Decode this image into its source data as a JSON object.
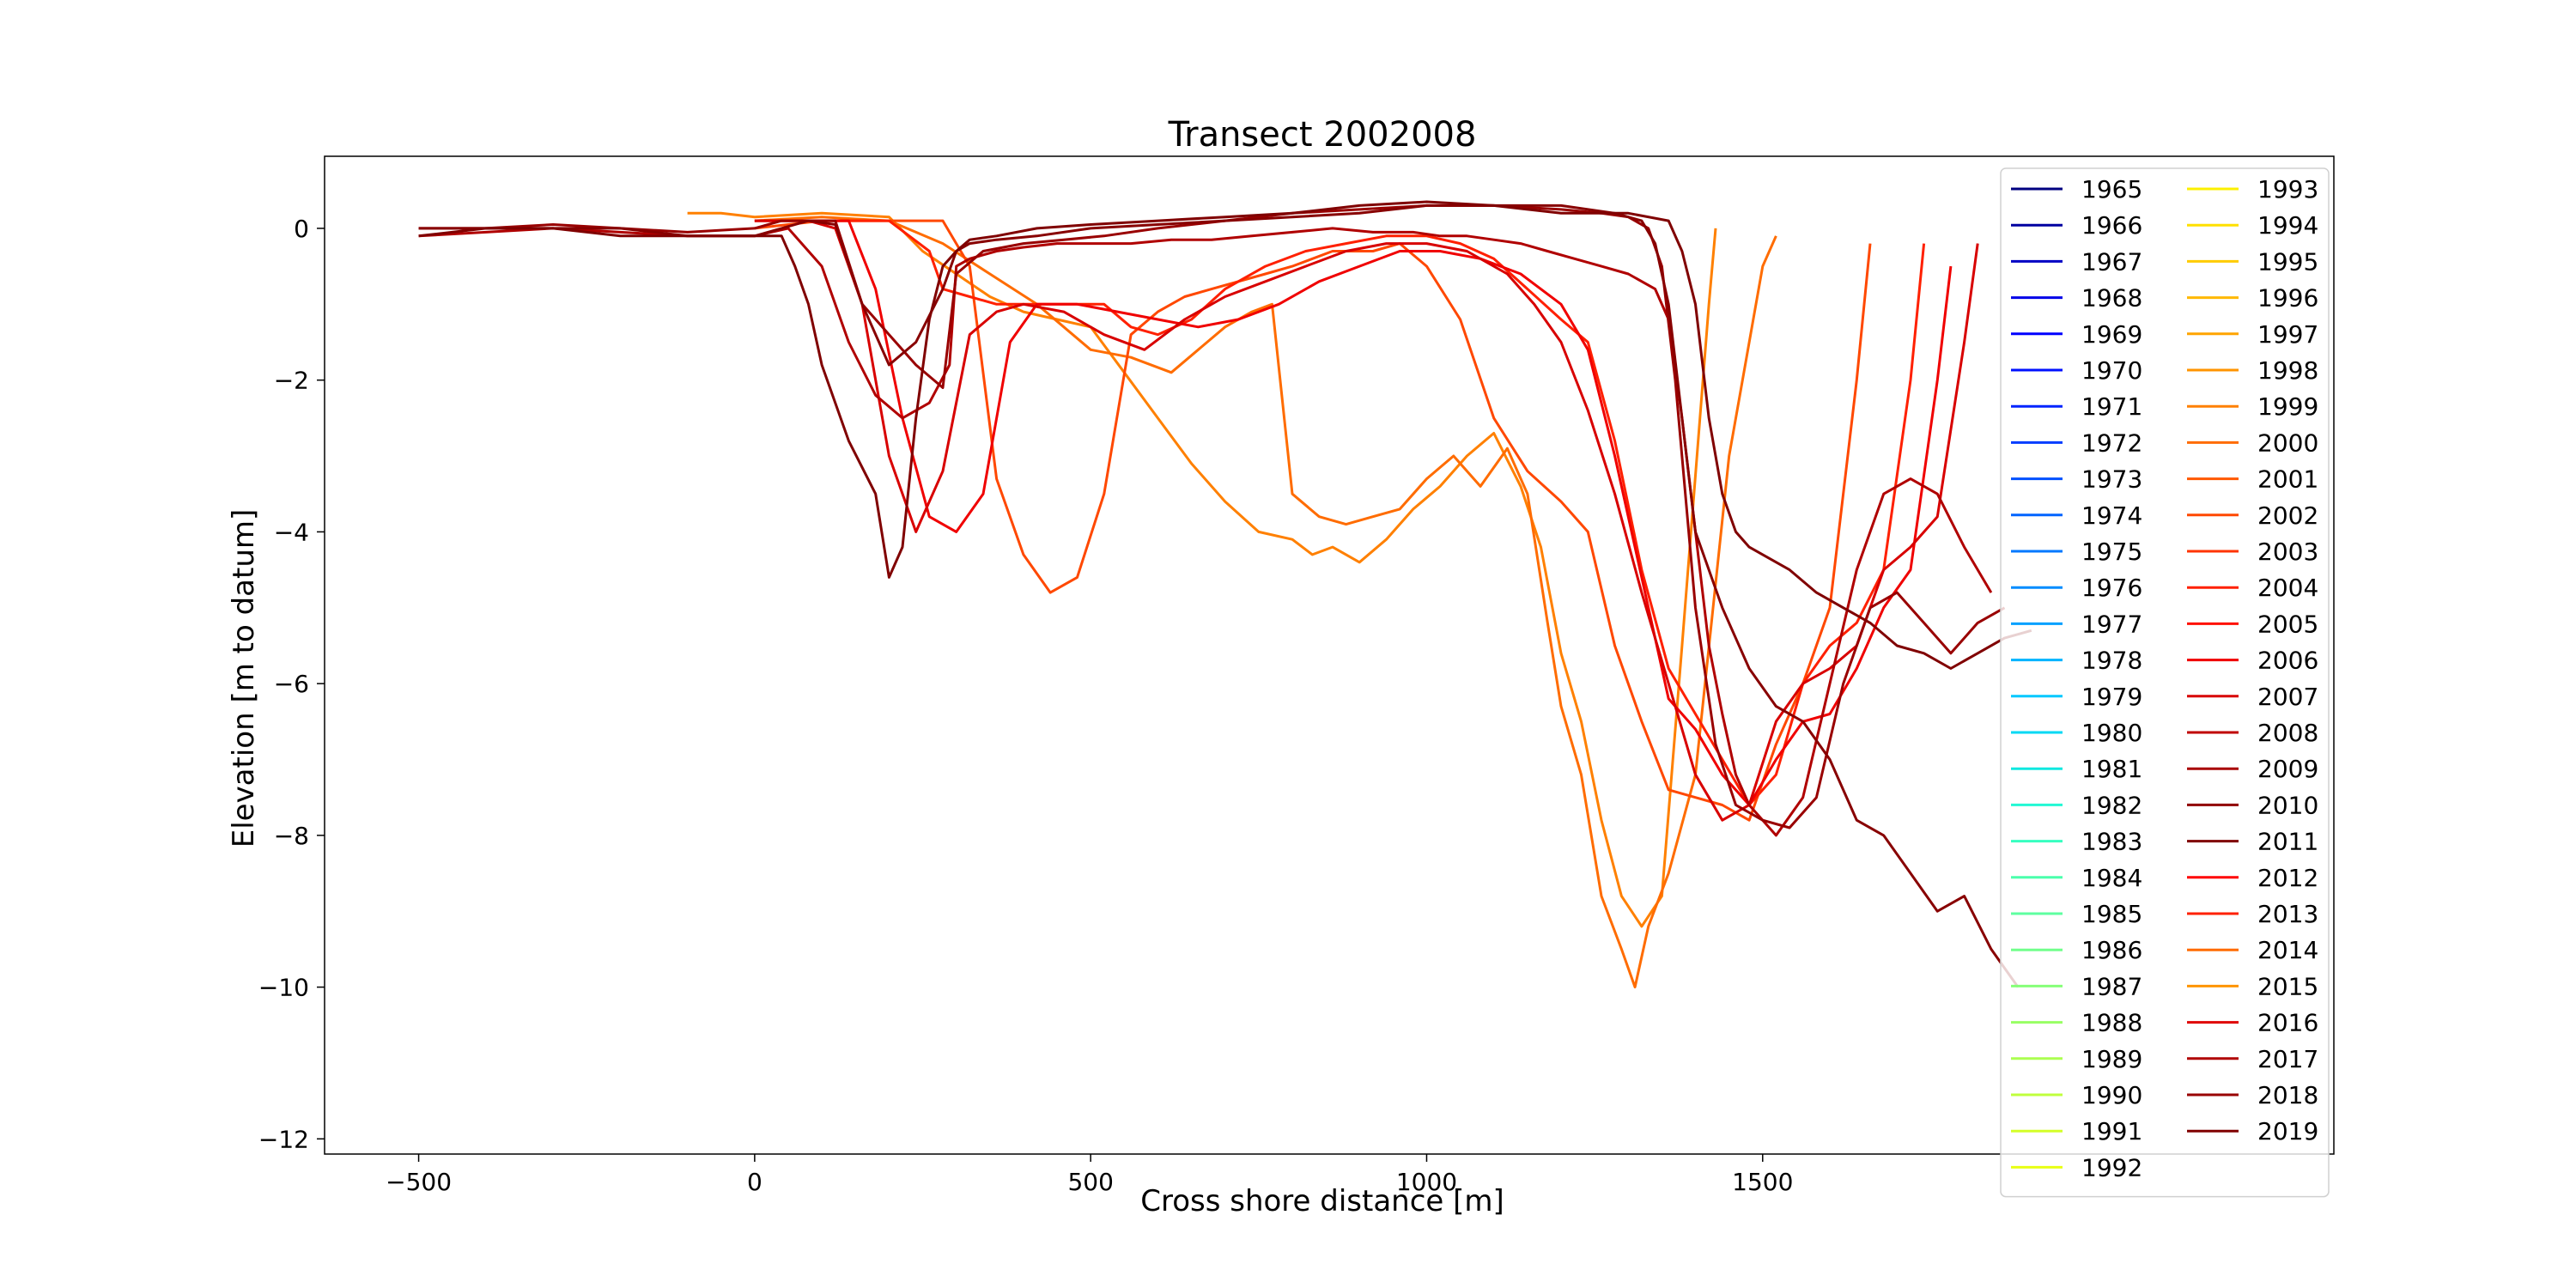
{
  "chart_data": {
    "type": "line",
    "title": "Transect 2002008",
    "xlabel": "Cross shore distance [m]",
    "ylabel": "Elevation [m to datum]",
    "xlim": [
      -640,
      2350
    ],
    "ylim": [
      -12.2,
      0.95
    ],
    "xticks": [
      -500,
      0,
      500,
      1000,
      1500
    ],
    "xtick_labels": [
      "−500",
      "0",
      "500",
      "1000",
      "1500"
    ],
    "yticks": [
      0,
      -2,
      -4,
      -6,
      -8,
      -10,
      -12
    ],
    "ytick_labels": [
      "0",
      "−2",
      "−4",
      "−6",
      "−8",
      "−10",
      "−12"
    ],
    "grid": false,
    "legend": {
      "placement": "right",
      "columns": 2,
      "entries": [
        "1965",
        "1966",
        "1967",
        "1968",
        "1969",
        "1970",
        "1971",
        "1972",
        "1973",
        "1974",
        "1975",
        "1976",
        "1977",
        "1978",
        "1979",
        "1980",
        "1981",
        "1982",
        "1983",
        "1984",
        "1985",
        "1986",
        "1987",
        "1988",
        "1989",
        "1990",
        "1991",
        "1992",
        "1993",
        "1994",
        "1995",
        "1996",
        "1997",
        "1998",
        "1999",
        "2000",
        "2001",
        "2002",
        "2003",
        "2004",
        "2005",
        "2006",
        "2007",
        "2008",
        "2009",
        "2010",
        "2011",
        "2012",
        "2013",
        "2014",
        "2015",
        "2016",
        "2017",
        "2018",
        "2019"
      ],
      "colors": [
        "#000080",
        "#0000a0",
        "#0000c4",
        "#0000e8",
        "#0000ff",
        "#0010ff",
        "#0024ff",
        "#003cff",
        "#0050ff",
        "#0064ff",
        "#0078ff",
        "#008cff",
        "#00a0ff",
        "#00b4ff",
        "#00c8ff",
        "#00d8f4",
        "#0ee8e0",
        "#22f8d4",
        "#36ffc0",
        "#4affac",
        "#5effa0",
        "#72ff8c",
        "#86ff78",
        "#98ff64",
        "#acff50",
        "#c0ff3c",
        "#d4ff28",
        "#e8ff14",
        "#fcf000",
        "#ffe000",
        "#ffcc00",
        "#ffb800",
        "#ffa400",
        "#ff9400",
        "#ff8000",
        "#ff6c00",
        "#ff5800",
        "#ff4800",
        "#ff3400",
        "#ff2000",
        "#ff1000",
        "#f00000",
        "#d80000",
        "#c00000",
        "#a80000",
        "#900000",
        "#800000",
        "#ff0000",
        "#ff2000",
        "#ff6c00",
        "#ff9400",
        "#e00000",
        "#b00000",
        "#990000",
        "#800000"
      ]
    },
    "series": [
      {
        "name": "2006",
        "color": "#ff8000",
        "x": [
          -100,
          -50,
          0,
          100,
          200,
          250,
          300,
          350,
          400,
          450,
          500,
          550,
          600,
          650,
          700,
          750,
          800,
          830,
          860,
          900,
          940,
          980,
          1020,
          1060,
          1100,
          1140,
          1170,
          1200,
          1230,
          1260,
          1290,
          1320,
          1350,
          1380,
          1420,
          1430
        ],
        "y": [
          0.2,
          0.2,
          0.15,
          0.2,
          0.15,
          -0.3,
          -0.6,
          -0.9,
          -1.1,
          -1.2,
          -1.3,
          -1.9,
          -2.5,
          -3.1,
          -3.6,
          -4.0,
          -4.1,
          -4.3,
          -4.2,
          -4.4,
          -4.1,
          -3.7,
          -3.4,
          -3.0,
          -2.7,
          -3.4,
          -4.2,
          -5.6,
          -6.5,
          -7.8,
          -8.8,
          -9.2,
          -8.8,
          -5.5,
          -1.0,
          0.0
        ]
      },
      {
        "name": "2007",
        "color": "#ff6c00",
        "x": [
          0,
          100,
          200,
          280,
          350,
          420,
          460,
          500,
          560,
          620,
          660,
          700,
          740,
          770,
          800,
          840,
          880,
          920,
          960,
          1000,
          1040,
          1080,
          1120,
          1150,
          1180,
          1200,
          1230,
          1260,
          1290,
          1310,
          1330,
          1360,
          1400,
          1450,
          1500,
          1520
        ],
        "y": [
          0.1,
          0.15,
          0.1,
          -0.2,
          -0.6,
          -1.0,
          -1.3,
          -1.6,
          -1.7,
          -1.9,
          -1.6,
          -1.3,
          -1.1,
          -1.0,
          -3.5,
          -3.8,
          -3.9,
          -3.8,
          -3.7,
          -3.3,
          -3.0,
          -3.4,
          -2.9,
          -3.5,
          -5.2,
          -6.3,
          -7.2,
          -8.8,
          -9.5,
          -10.0,
          -9.2,
          -8.5,
          -7.2,
          -3.0,
          -0.5,
          -0.1
        ]
      },
      {
        "name": "2008",
        "color": "#ff4800",
        "x": [
          0,
          100,
          200,
          280,
          320,
          360,
          400,
          440,
          480,
          520,
          560,
          600,
          640,
          680,
          720,
          760,
          800,
          860,
          920,
          960,
          1000,
          1050,
          1100,
          1150,
          1200,
          1240,
          1280,
          1320,
          1360,
          1400,
          1440,
          1480,
          1520,
          1560,
          1600,
          1640,
          1660
        ],
        "y": [
          0.0,
          0.1,
          0.1,
          0.1,
          -0.5,
          -3.3,
          -4.3,
          -4.8,
          -4.6,
          -3.5,
          -1.4,
          -1.1,
          -0.9,
          -0.8,
          -0.7,
          -0.6,
          -0.5,
          -0.3,
          -0.3,
          -0.2,
          -0.5,
          -1.2,
          -2.5,
          -3.2,
          -3.6,
          -4.0,
          -5.5,
          -6.5,
          -7.4,
          -7.5,
          -7.6,
          -7.8,
          -6.8,
          -6.0,
          -5.0,
          -2.0,
          -0.2
        ]
      },
      {
        "name": "2012",
        "color": "#ff2000",
        "x": [
          0,
          100,
          200,
          260,
          280,
          320,
          360,
          400,
          440,
          480,
          520,
          560,
          600,
          650,
          700,
          760,
          820,
          880,
          940,
          1000,
          1050,
          1100,
          1150,
          1200,
          1240,
          1280,
          1320,
          1360,
          1400,
          1440,
          1480,
          1520,
          1560,
          1600,
          1640,
          1680,
          1720,
          1740
        ],
        "y": [
          0.1,
          0.1,
          0.1,
          -0.3,
          -0.8,
          -0.9,
          -1.0,
          -1.0,
          -1.0,
          -1.0,
          -1.0,
          -1.3,
          -1.4,
          -1.2,
          -0.8,
          -0.5,
          -0.3,
          -0.2,
          -0.1,
          -0.1,
          -0.2,
          -0.4,
          -0.8,
          -1.2,
          -1.5,
          -2.8,
          -4.5,
          -5.8,
          -6.4,
          -7.0,
          -7.6,
          -7.2,
          -6.0,
          -5.5,
          -5.2,
          -4.5,
          -2.0,
          -0.2
        ]
      },
      {
        "name": "2013",
        "color": "#f00000",
        "x": [
          0,
          80,
          140,
          180,
          220,
          260,
          300,
          340,
          380,
          420,
          480,
          540,
          600,
          660,
          720,
          780,
          840,
          900,
          960,
          1020,
          1080,
          1140,
          1200,
          1240,
          1280,
          1320,
          1360,
          1400,
          1440,
          1480,
          1520,
          1560,
          1600,
          1640,
          1680,
          1720,
          1760,
          1780
        ],
        "y": [
          0.1,
          0.1,
          0.1,
          -0.8,
          -2.5,
          -3.8,
          -4.0,
          -3.5,
          -1.5,
          -1.0,
          -1.0,
          -1.1,
          -1.2,
          -1.3,
          -1.2,
          -1.0,
          -0.7,
          -0.5,
          -0.3,
          -0.3,
          -0.4,
          -0.6,
          -1.0,
          -1.6,
          -3.0,
          -4.6,
          -6.2,
          -6.6,
          -7.2,
          -7.6,
          -7.0,
          -6.5,
          -6.4,
          -5.8,
          -5.0,
          -4.5,
          -2.0,
          -0.5
        ]
      },
      {
        "name": "2014",
        "color": "#d80000",
        "x": [
          0,
          80,
          120,
          160,
          200,
          240,
          280,
          320,
          360,
          400,
          460,
          520,
          580,
          640,
          700,
          760,
          820,
          880,
          940,
          1000,
          1060,
          1120,
          1160,
          1200,
          1240,
          1280,
          1320,
          1360,
          1400,
          1440,
          1480,
          1520,
          1560,
          1600,
          1640,
          1680,
          1720,
          1760,
          1800,
          1820
        ],
        "y": [
          0.1,
          0.1,
          0.0,
          -1.0,
          -3.0,
          -4.0,
          -3.2,
          -1.4,
          -1.1,
          -1.0,
          -1.1,
          -1.4,
          -1.6,
          -1.2,
          -0.9,
          -0.7,
          -0.5,
          -0.3,
          -0.2,
          -0.2,
          -0.3,
          -0.6,
          -1.0,
          -1.5,
          -2.4,
          -3.5,
          -4.8,
          -6.0,
          -7.2,
          -7.8,
          -7.6,
          -6.5,
          -6.0,
          -5.8,
          -5.5,
          -4.5,
          -4.2,
          -3.8,
          -1.5,
          -0.2
        ]
      },
      {
        "name": "2016",
        "color": "#b00000",
        "x": [
          -500,
          -400,
          -300,
          -200,
          -100,
          0,
          50,
          100,
          140,
          180,
          220,
          260,
          290,
          300,
          320,
          360,
          400,
          450,
          500,
          560,
          620,
          680,
          740,
          800,
          860,
          920,
          980,
          1020,
          1060,
          1100,
          1140,
          1180,
          1220,
          1260,
          1300,
          1340,
          1360,
          1380,
          1400,
          1420,
          1440,
          1460,
          1480,
          1520,
          1560,
          1600,
          1640,
          1680,
          1720,
          1760,
          1800,
          1840
        ],
        "y": [
          -0.1,
          -0.05,
          0.0,
          -0.05,
          -0.1,
          -0.1,
          0.0,
          -0.5,
          -1.5,
          -2.2,
          -2.5,
          -2.3,
          -1.8,
          -0.5,
          -0.4,
          -0.3,
          -0.25,
          -0.2,
          -0.2,
          -0.2,
          -0.15,
          -0.15,
          -0.1,
          -0.05,
          0.0,
          -0.05,
          -0.05,
          -0.1,
          -0.1,
          -0.15,
          -0.2,
          -0.3,
          -0.4,
          -0.5,
          -0.6,
          -0.8,
          -1.2,
          -2.5,
          -4.0,
          -5.5,
          -6.4,
          -7.2,
          -7.6,
          -8.0,
          -7.5,
          -6.0,
          -4.5,
          -3.5,
          -3.3,
          -3.5,
          -4.2,
          -4.8
        ]
      },
      {
        "name": "2017",
        "color": "#990000",
        "x": [
          -500,
          -400,
          -300,
          -200,
          -100,
          0,
          40,
          80,
          120,
          160,
          200,
          240,
          280,
          300,
          340,
          400,
          460,
          520,
          600,
          700,
          800,
          900,
          1000,
          1100,
          1200,
          1260,
          1300,
          1330,
          1350,
          1370,
          1400,
          1430,
          1460,
          1500,
          1540,
          1580,
          1620,
          1660,
          1700,
          1740,
          1780,
          1820,
          1860
        ],
        "y": [
          0.0,
          0.0,
          0.05,
          0.0,
          -0.05,
          0.0,
          0.1,
          0.1,
          0.1,
          -1.0,
          -1.4,
          -1.8,
          -2.1,
          -0.6,
          -0.3,
          -0.2,
          -0.15,
          -0.1,
          0.0,
          0.1,
          0.2,
          0.25,
          0.3,
          0.3,
          0.25,
          0.2,
          0.15,
          0.0,
          -0.5,
          -2.0,
          -5.0,
          -6.8,
          -7.6,
          -7.8,
          -7.9,
          -7.5,
          -6.0,
          -5.0,
          -4.8,
          -5.2,
          -5.6,
          -5.2,
          -5.0
        ]
      },
      {
        "name": "2018",
        "color": "#880000",
        "x": [
          -500,
          -400,
          -300,
          -200,
          -100,
          0,
          40,
          80,
          120,
          160,
          200,
          240,
          280,
          300,
          320,
          360,
          420,
          500,
          600,
          700,
          800,
          900,
          1000,
          1100,
          1200,
          1280,
          1320,
          1340,
          1360,
          1380,
          1400,
          1440,
          1480,
          1520,
          1560,
          1600,
          1640,
          1680,
          1720,
          1760,
          1800,
          1840,
          1880
        ],
        "y": [
          0.0,
          0.0,
          0.0,
          0.0,
          -0.1,
          -0.1,
          0.0,
          0.1,
          0.05,
          -1.0,
          -1.8,
          -1.5,
          -0.8,
          -0.3,
          -0.2,
          -0.15,
          -0.1,
          0.0,
          0.05,
          0.1,
          0.15,
          0.2,
          0.3,
          0.3,
          0.3,
          0.2,
          0.1,
          -0.2,
          -1.0,
          -2.5,
          -4.0,
          -5.0,
          -5.8,
          -6.3,
          -6.5,
          -7.0,
          -7.8,
          -8.0,
          -8.5,
          -9.0,
          -8.8,
          -9.5,
          -10.0
        ]
      },
      {
        "name": "2019",
        "color": "#800000",
        "x": [
          -500,
          -400,
          -300,
          -200,
          -100,
          0,
          40,
          60,
          80,
          100,
          140,
          180,
          200,
          220,
          240,
          260,
          280,
          300,
          320,
          360,
          420,
          500,
          600,
          700,
          800,
          900,
          1000,
          1100,
          1200,
          1300,
          1360,
          1380,
          1400,
          1420,
          1440,
          1460,
          1480,
          1500,
          1540,
          1580,
          1620,
          1660,
          1700,
          1740,
          1780,
          1820,
          1860,
          1900
        ],
        "y": [
          -0.1,
          0.0,
          0.0,
          -0.1,
          -0.1,
          -0.1,
          -0.1,
          -0.5,
          -1.0,
          -1.8,
          -2.8,
          -3.5,
          -4.6,
          -4.2,
          -2.5,
          -1.2,
          -0.5,
          -0.3,
          -0.15,
          -0.1,
          0.0,
          0.05,
          0.1,
          0.15,
          0.2,
          0.3,
          0.35,
          0.3,
          0.2,
          0.2,
          0.1,
          -0.3,
          -1.0,
          -2.5,
          -3.5,
          -4.0,
          -4.2,
          -4.3,
          -4.5,
          -4.8,
          -5.0,
          -5.2,
          -5.5,
          -5.6,
          -5.8,
          -5.6,
          -5.4,
          -5.3
        ]
      }
    ]
  }
}
